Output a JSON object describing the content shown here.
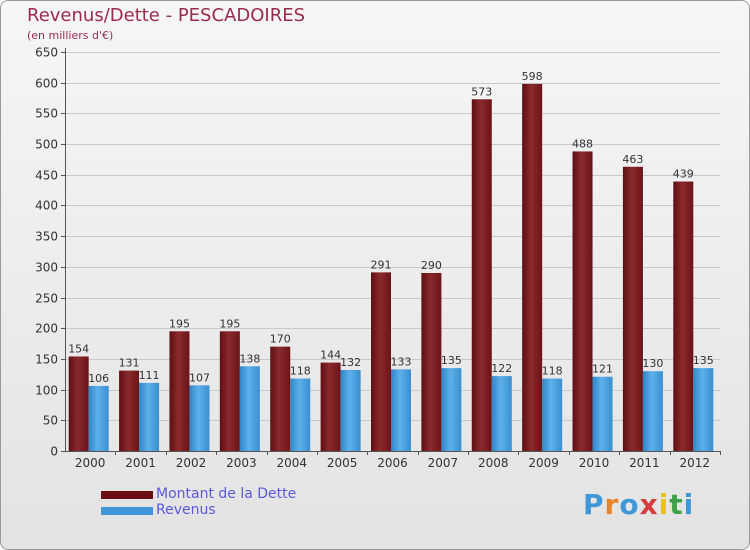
{
  "title": "Revenus/Dette - PESCADOIRES",
  "subtitle": "(en milliers d'€)",
  "colors": {
    "debt": "#7a1f24",
    "revenue": "#3f97d8",
    "title": "#9b2b4a",
    "legend_text": "#5a5ad8"
  },
  "legend": [
    {
      "label": "Montant de la Dette",
      "color": "#6b0f14"
    },
    {
      "label": "Revenus",
      "color": "#3f97d8"
    }
  ],
  "brand": {
    "text": "Proxiti",
    "icon": "proxiti-logo"
  },
  "chart_data": {
    "type": "bar",
    "title": "Revenus/Dette - PESCADOIRES",
    "subtitle": "(en milliers d'€)",
    "categories": [
      "2000",
      "2001",
      "2002",
      "2003",
      "2004",
      "2005",
      "2006",
      "2007",
      "2008",
      "2009",
      "2010",
      "2011",
      "2012"
    ],
    "series": [
      {
        "name": "Montant de la Dette",
        "values": [
          154,
          131,
          195,
          195,
          170,
          144,
          291,
          290,
          573,
          598,
          488,
          463,
          439
        ]
      },
      {
        "name": "Revenus",
        "values": [
          106,
          111,
          107,
          138,
          118,
          132,
          133,
          135,
          122,
          118,
          121,
          130,
          135
        ]
      }
    ],
    "ylim": [
      0,
      650
    ],
    "yticks": [
      0,
      50,
      100,
      150,
      200,
      250,
      300,
      350,
      400,
      450,
      500,
      550,
      600,
      650
    ],
    "grid": true,
    "legend_position": "bottom-left"
  }
}
